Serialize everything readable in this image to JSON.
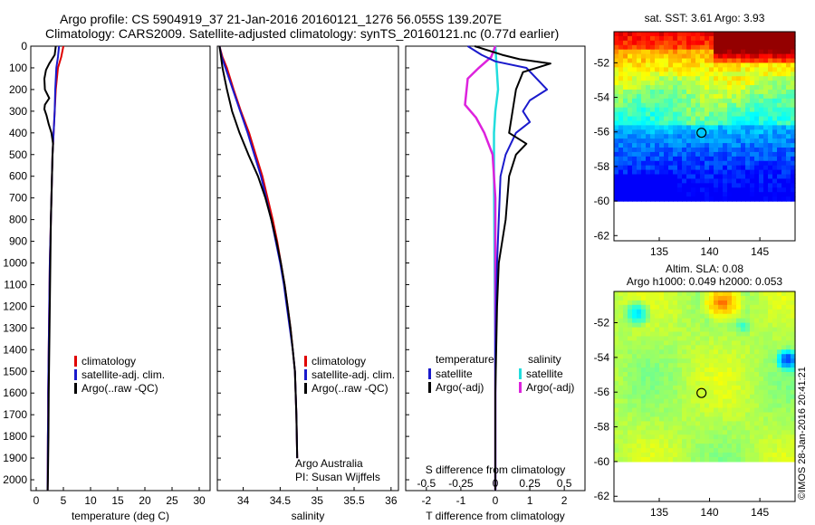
{
  "header": {
    "line1": "Argo profile: CS 5904919_37 21-Jan-2016 20160121_1276 56.055S 139.207E",
    "line2": "Climatology: CARS2009. Satellite-adjusted climatology: synTS_20160121.nc (0.77d earlier)"
  },
  "colors": {
    "climatology": "#e00000",
    "satellite": "#1a1acc",
    "argo": "#000000",
    "salinity_satellite": "#22dddd",
    "salinity_argo": "#dd22dd"
  },
  "chart_data": [
    {
      "type": "line",
      "id": "temperature-profile",
      "xlabel": "temperature (deg C)",
      "xlim": [
        -1,
        32
      ],
      "xticks": [
        0,
        5,
        10,
        15,
        20,
        25,
        30
      ],
      "ylim": [
        0,
        2050
      ],
      "yticks": [
        0,
        100,
        200,
        300,
        400,
        500,
        600,
        700,
        800,
        900,
        1000,
        1100,
        1200,
        1300,
        1400,
        1500,
        1600,
        1700,
        1800,
        1900,
        2000
      ],
      "y_inverted": true,
      "legend": [
        "climatology",
        "satellite-adj. clim.",
        "Argo(..raw -QC)"
      ],
      "legend_position": "center",
      "series": [
        {
          "name": "climatology",
          "color": "#e00000",
          "x": [
            5.0,
            4.6,
            4.0,
            3.6,
            3.4,
            3.2,
            3.0,
            2.9,
            2.8,
            2.7,
            2.6,
            2.5,
            2.45,
            2.4,
            2.35,
            2.3,
            2.25,
            2.2,
            2.2,
            2.15,
            2.1
          ],
          "y": [
            0,
            50,
            100,
            200,
            300,
            400,
            500,
            600,
            700,
            800,
            900,
            1000,
            1100,
            1200,
            1300,
            1400,
            1500,
            1600,
            1700,
            1800,
            2050
          ]
        },
        {
          "name": "satellite-adj. clim.",
          "color": "#1a1acc",
          "x": [
            4.2,
            4.0,
            3.7,
            3.5,
            3.4,
            3.2,
            3.0,
            2.9,
            2.8,
            2.7,
            2.6,
            2.5,
            2.45,
            2.4,
            2.35,
            2.3,
            2.25,
            2.2,
            2.2,
            2.15,
            2.1
          ],
          "y": [
            0,
            50,
            100,
            200,
            300,
            400,
            500,
            600,
            700,
            800,
            900,
            1000,
            1100,
            1200,
            1300,
            1400,
            1500,
            1600,
            1700,
            1800,
            2050
          ]
        },
        {
          "name": "Argo(..raw -QC)",
          "color": "#000000",
          "x": [
            3.6,
            3.4,
            2.4,
            1.8,
            1.5,
            1.6,
            2.4,
            1.6,
            1.5,
            1.9,
            2.3,
            2.8,
            3.1,
            3.0,
            2.9,
            2.8,
            2.7,
            2.6,
            2.5,
            2.4,
            2.3,
            2.25,
            2.2,
            2.15,
            2.1
          ],
          "y": [
            0,
            40,
            80,
            110,
            150,
            200,
            240,
            270,
            290,
            320,
            360,
            400,
            450,
            500,
            600,
            700,
            800,
            1000,
            1200,
            1400,
            1600,
            1800,
            1900,
            2000,
            2050
          ]
        }
      ]
    },
    {
      "type": "line",
      "id": "salinity-profile",
      "xlabel": "salinity",
      "xlim": [
        33.65,
        36.1
      ],
      "xticks": [
        34,
        34.5,
        35,
        35.5,
        36
      ],
      "ylim": [
        0,
        2050
      ],
      "y_inverted": true,
      "legend": [
        "climatology",
        "satellite-adj. clim.",
        "Argo(..raw -QC)"
      ],
      "legend_position": "center-right",
      "annotation": [
        "Argo Australia",
        "PI: Susan Wijffels"
      ],
      "series": [
        {
          "name": "climatology",
          "color": "#e00000",
          "x": [
            33.68,
            33.72,
            33.78,
            33.87,
            33.97,
            34.08,
            34.17,
            34.26,
            34.33,
            34.4,
            34.46,
            34.51,
            34.56,
            34.6,
            34.64,
            34.67,
            34.7,
            34.72,
            34.73
          ],
          "y": [
            0,
            50,
            100,
            200,
            300,
            400,
            500,
            600,
            700,
            800,
            900,
            1000,
            1100,
            1200,
            1300,
            1400,
            1500,
            1700,
            1900
          ]
        },
        {
          "name": "satellite-adj. clim.",
          "color": "#1a1acc",
          "x": [
            33.68,
            33.71,
            33.76,
            33.86,
            33.96,
            34.06,
            34.15,
            34.24,
            34.31,
            34.38,
            34.44,
            34.5,
            34.55,
            34.59,
            34.63,
            34.67,
            34.7,
            34.72,
            34.73
          ],
          "y": [
            0,
            50,
            100,
            200,
            300,
            400,
            500,
            600,
            700,
            800,
            900,
            1000,
            1100,
            1200,
            1300,
            1400,
            1500,
            1700,
            1900
          ]
        },
        {
          "name": "Argo(..raw -QC)",
          "color": "#000000",
          "x": [
            33.68,
            33.7,
            33.72,
            33.78,
            33.85,
            33.95,
            34.07,
            34.2,
            34.3,
            34.38,
            34.45,
            34.51,
            34.56,
            34.6,
            34.64,
            34.67,
            34.7,
            34.72,
            34.73
          ],
          "y": [
            0,
            50,
            100,
            200,
            300,
            400,
            500,
            600,
            700,
            800,
            900,
            1000,
            1100,
            1200,
            1300,
            1400,
            1500,
            1700,
            1900
          ]
        }
      ]
    },
    {
      "type": "line",
      "id": "difference-profile",
      "xlabel": "T difference from climatology",
      "xlabel2": "S difference from climatology",
      "xlim": [
        -2.6,
        2.6
      ],
      "xticks": [
        -2,
        -1,
        0,
        1,
        2
      ],
      "xlim2": [
        -0.65,
        0.65
      ],
      "xticks2": [
        -0.5,
        -0.25,
        0,
        0.25,
        0.5
      ],
      "xticklabels2": [
        "-0.5",
        "-0.25",
        "0",
        "0.25",
        "0.5"
      ],
      "ylim": [
        0,
        2050
      ],
      "y_inverted": true,
      "legend_left": {
        "title": "temperature",
        "items": [
          "satellite",
          "Argo(-adj)"
        ]
      },
      "legend_right": {
        "title": "salinity",
        "items": [
          "satellite",
          "Argo(-adj)"
        ]
      },
      "series": [
        {
          "name": "temperature satellite",
          "color": "#1a1acc",
          "x": [
            -0.8,
            -0.4,
            0.0,
            0.9,
            1.5,
            1.0,
            0.8,
            1.0,
            0.6,
            0.3,
            0.15,
            0.1,
            0.05,
            0.02,
            0.0,
            0.0,
            0.0
          ],
          "y": [
            0,
            40,
            70,
            100,
            200,
            250,
            300,
            350,
            400,
            500,
            600,
            800,
            1000,
            1200,
            1400,
            1700,
            2050
          ]
        },
        {
          "name": "temperature Argo(-adj)",
          "color": "#000000",
          "x": [
            -0.6,
            0.2,
            0.7,
            1.6,
            0.8,
            0.6,
            0.5,
            0.4,
            0.9,
            0.6,
            0.4,
            0.3,
            0.1,
            0.05,
            0.0,
            0.0
          ],
          "y": [
            0,
            40,
            60,
            80,
            120,
            200,
            300,
            400,
            450,
            500,
            600,
            800,
            1000,
            1200,
            1600,
            2050
          ]
        },
        {
          "name": "salinity satellite",
          "color": "#22dddd",
          "x": [
            0.0,
            0.01,
            0.02,
            0.0,
            -0.01,
            -0.01,
            -0.005,
            0.0,
            0.0
          ],
          "y": [
            0,
            100,
            200,
            300,
            400,
            600,
            1000,
            1500,
            2050
          ]
        },
        {
          "name": "salinity Argo(-adj)",
          "color": "#dd22dd",
          "x": [
            0.0,
            -0.03,
            -0.12,
            -0.2,
            -0.22,
            -0.14,
            -0.08,
            -0.02,
            0.0,
            0.0,
            0.0
          ],
          "y": [
            0,
            50,
            100,
            150,
            270,
            330,
            400,
            500,
            700,
            1200,
            2050
          ]
        }
      ]
    },
    {
      "type": "heatmap",
      "id": "sst-map",
      "title": "sat. SST: 3.61  Argo: 3.93",
      "xticks": [
        135,
        140,
        145
      ],
      "yticks": [
        -52,
        -54,
        -56,
        -58,
        -60,
        -62
      ],
      "xlim": [
        130.5,
        148.5
      ],
      "ylim": [
        -62.3,
        -50.2
      ],
      "marker": [
        139.2,
        -56.05
      ]
    },
    {
      "type": "heatmap",
      "id": "sla-map",
      "title": "Altim. SLA: 0.08",
      "subtitle": "Argo h1000: 0.049  h2000: 0.053",
      "xticks": [
        135,
        140,
        145
      ],
      "yticks": [
        -52,
        -54,
        -56,
        -58,
        -60,
        -62
      ],
      "xlim": [
        130.5,
        148.5
      ],
      "ylim": [
        -62.3,
        -50.2
      ],
      "marker": [
        139.2,
        -56.05
      ]
    }
  ],
  "footer": {
    "imos_stamp": "©IMOS 28-Jan-2016 20:41:21"
  }
}
